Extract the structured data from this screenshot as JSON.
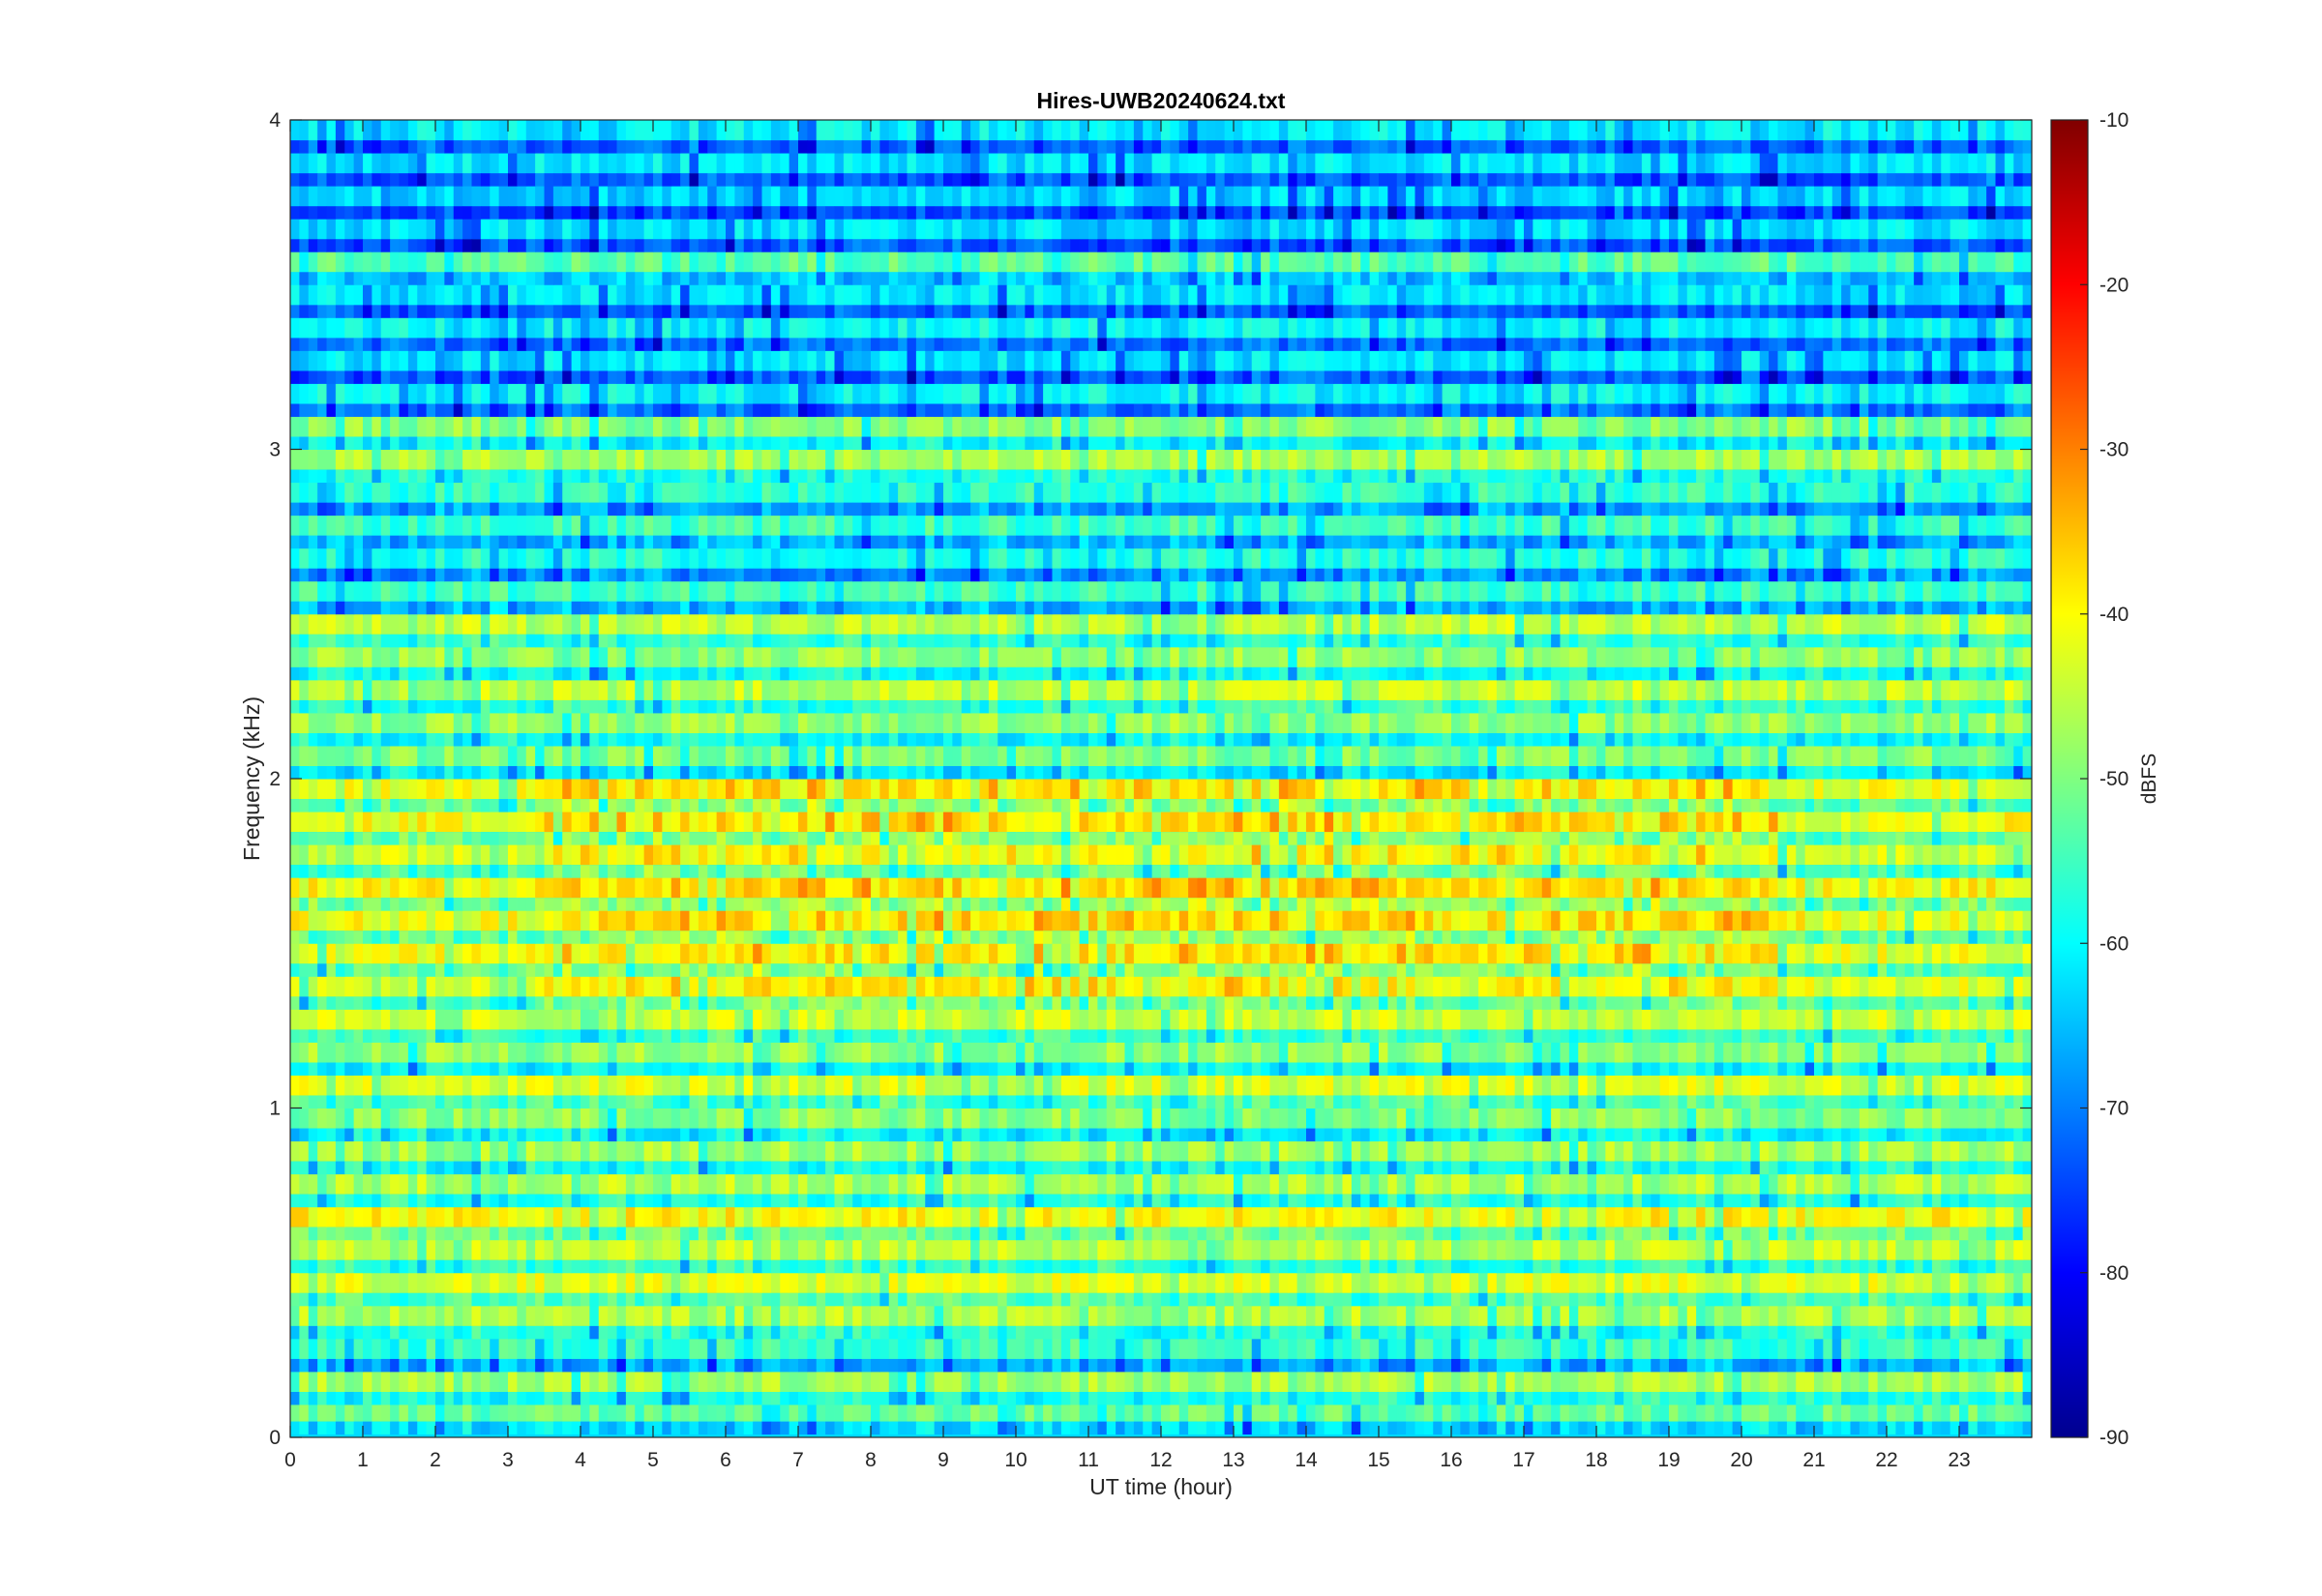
{
  "chart_data": {
    "type": "heatmap",
    "title": "Hires-UWB20240624.txt",
    "xlabel": "UT time (hour)",
    "ylabel": "Frequency (kHz)",
    "xlim": [
      0,
      24
    ],
    "ylim": [
      0,
      4
    ],
    "xticks": [
      0,
      1,
      2,
      3,
      4,
      5,
      6,
      7,
      8,
      9,
      10,
      11,
      12,
      13,
      14,
      15,
      16,
      17,
      18,
      19,
      20,
      21,
      22,
      23
    ],
    "yticks": [
      0,
      1,
      2,
      3,
      4
    ],
    "colorbar": {
      "label": "dBFS",
      "range": [
        -90,
        -10
      ],
      "ticks": [
        -90,
        -80,
        -70,
        -60,
        -50,
        -40,
        -30,
        -20,
        -10
      ],
      "colormap": "jet"
    },
    "bands": [
      {
        "f_khz": 0.06,
        "dbfs": -52
      },
      {
        "f_khz": 0.15,
        "dbfs": -47
      },
      {
        "f_khz": 0.25,
        "dbfs": -55
      },
      {
        "f_khz": 0.35,
        "dbfs": -46
      },
      {
        "f_khz": 0.45,
        "dbfs": -43
      },
      {
        "f_khz": 0.55,
        "dbfs": -45
      },
      {
        "f_khz": 0.65,
        "dbfs": -40
      },
      {
        "f_khz": 0.75,
        "dbfs": -46
      },
      {
        "f_khz": 0.85,
        "dbfs": -47
      },
      {
        "f_khz": 0.95,
        "dbfs": -49
      },
      {
        "f_khz": 1.05,
        "dbfs": -43
      },
      {
        "f_khz": 1.15,
        "dbfs": -48
      },
      {
        "f_khz": 1.25,
        "dbfs": -44
      },
      {
        "f_khz": 1.35,
        "dbfs": -43
      },
      {
        "f_khz": 1.45,
        "dbfs": -42
      },
      {
        "f_khz": 1.55,
        "dbfs": -41
      },
      {
        "f_khz": 1.65,
        "dbfs": -40
      },
      {
        "f_khz": 1.75,
        "dbfs": -44
      },
      {
        "f_khz": 1.85,
        "dbfs": -41
      },
      {
        "f_khz": 1.95,
        "dbfs": -42
      },
      {
        "f_khz": 2.05,
        "dbfs": -50
      },
      {
        "f_khz": 2.15,
        "dbfs": -48
      },
      {
        "f_khz": 2.25,
        "dbfs": -45
      },
      {
        "f_khz": 2.35,
        "dbfs": -48
      },
      {
        "f_khz": 2.45,
        "dbfs": -45
      },
      {
        "f_khz": 2.55,
        "dbfs": -55
      },
      {
        "f_khz": 2.65,
        "dbfs": -57
      },
      {
        "f_khz": 2.75,
        "dbfs": -55
      },
      {
        "f_khz": 2.85,
        "dbfs": -56
      },
      {
        "f_khz": 2.95,
        "dbfs": -47
      },
      {
        "f_khz": 3.05,
        "dbfs": -49
      },
      {
        "f_khz": 3.15,
        "dbfs": -60
      },
      {
        "f_khz": 3.25,
        "dbfs": -62
      },
      {
        "f_khz": 3.35,
        "dbfs": -60
      },
      {
        "f_khz": 3.45,
        "dbfs": -62
      },
      {
        "f_khz": 3.55,
        "dbfs": -53
      },
      {
        "f_khz": 3.65,
        "dbfs": -62
      },
      {
        "f_khz": 3.75,
        "dbfs": -63
      },
      {
        "f_khz": 3.85,
        "dbfs": -62
      },
      {
        "f_khz": 3.95,
        "dbfs": -61
      }
    ]
  }
}
